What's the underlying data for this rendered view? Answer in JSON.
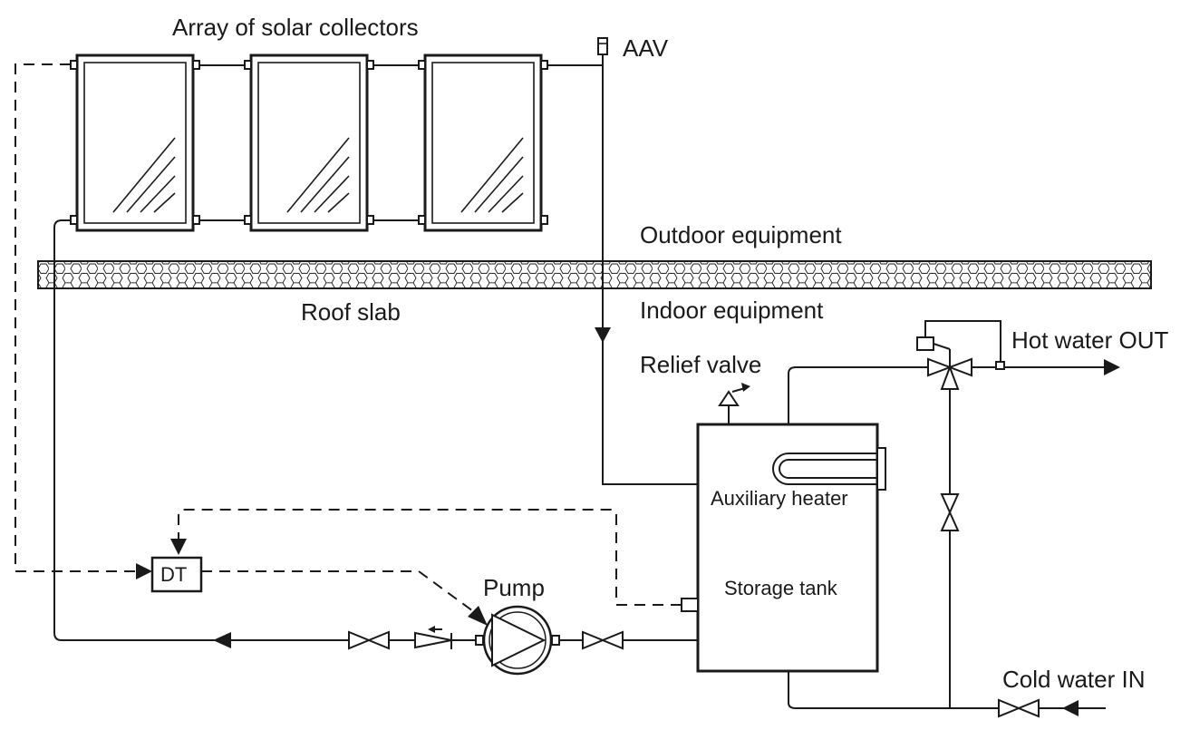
{
  "labels": {
    "collectors": "Array of solar collectors",
    "aav": "AAV",
    "outdoor": "Outdoor equipment",
    "roof_slab": "Roof slab",
    "indoor": "Indoor equipment",
    "relief_valve": "Relief valve",
    "hot_water_out": "Hot water OUT",
    "auxiliary_heater": "Auxiliary heater",
    "storage_tank": "Storage tank",
    "pump": "Pump",
    "dt": "DT",
    "cold_water_in": "Cold water IN"
  },
  "colors": {
    "line": "#1a1a1a",
    "background": "#ffffff"
  }
}
